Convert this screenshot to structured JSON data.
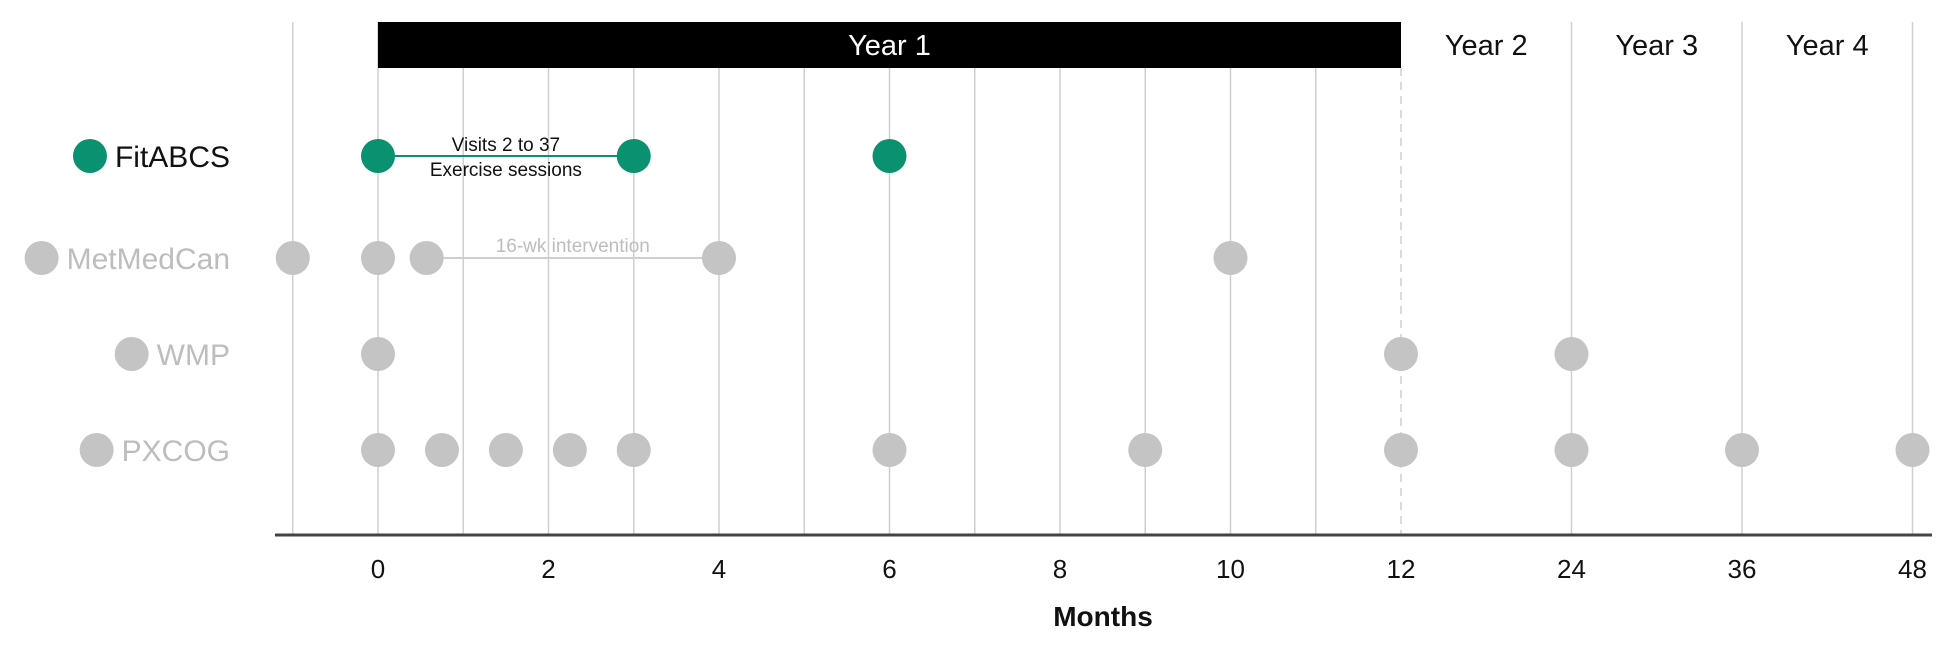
{
  "chart_data": {
    "type": "scatter",
    "xlabel": "Months",
    "x_ticks": [
      "0",
      "2",
      "4",
      "6",
      "8",
      "10",
      "12",
      "24",
      "36",
      "48"
    ],
    "x_scale": "piecewise: linear 0–12 months, then yearly ticks 12–48",
    "x_range": [
      -1,
      48
    ],
    "grid": true,
    "year_bands": [
      {
        "label": "Year 1",
        "start": 0,
        "end": 12,
        "highlighted": true
      },
      {
        "label": "Year 2",
        "start": 12,
        "end": 24,
        "highlighted": false
      },
      {
        "label": "Year 3",
        "start": 24,
        "end": 36,
        "highlighted": false
      },
      {
        "label": "Year 4",
        "start": 36,
        "end": 48,
        "highlighted": false
      }
    ],
    "series": [
      {
        "name": "FitABCS",
        "color": "#0a9170",
        "highlighted": true,
        "visits": [
          0,
          3,
          6
        ],
        "span": {
          "start": 0,
          "end": 3,
          "label_lines": [
            "Visits 2 to 37",
            "Exercise sessions"
          ]
        }
      },
      {
        "name": "MetMedCan",
        "color": "#c4c4c4",
        "highlighted": false,
        "visits": [
          -1,
          0,
          0.57,
          4,
          10
        ],
        "span": {
          "start": 0.57,
          "end": 4,
          "label_lines": [
            "16-wk intervention"
          ]
        }
      },
      {
        "name": "WMP",
        "color": "#c4c4c4",
        "highlighted": false,
        "visits": [
          0,
          12,
          24
        ]
      },
      {
        "name": "PXCOG",
        "color": "#c4c4c4",
        "highlighted": false,
        "visits": [
          0,
          0.75,
          1.5,
          2.25,
          3,
          6,
          9,
          12,
          24,
          36,
          48
        ]
      }
    ]
  },
  "colors": {
    "accent": "#0a9170",
    "muted": "#c4c4c4",
    "muted_text": "#bdbdbd",
    "year1_band": "#000000"
  }
}
